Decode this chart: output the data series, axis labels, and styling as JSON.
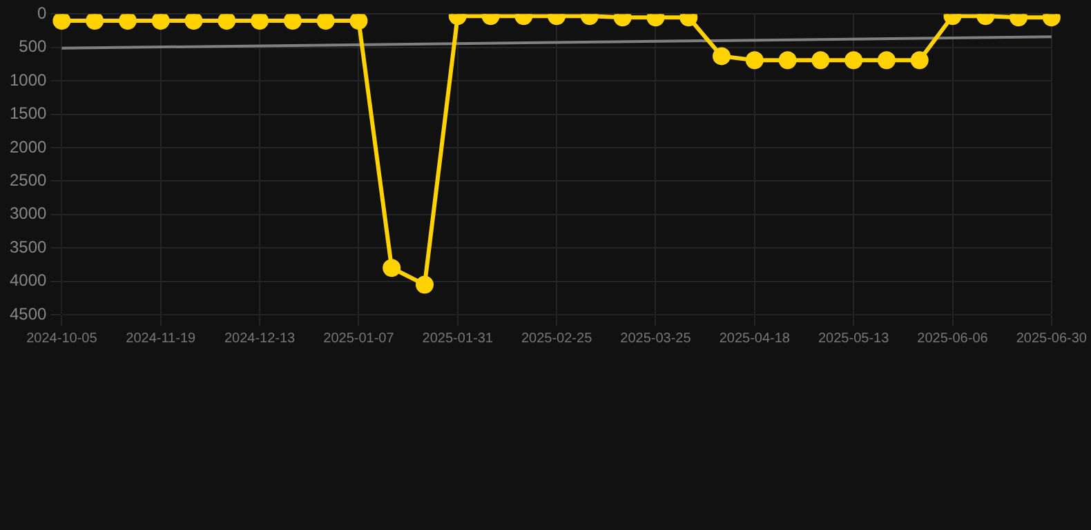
{
  "chart_data": {
    "type": "line",
    "categories": [
      "2024-10-05",
      null,
      null,
      "2024-11-19",
      null,
      null,
      "2024-12-13",
      null,
      null,
      "2025-01-07",
      null,
      null,
      "2025-01-31",
      null,
      null,
      "2025-02-25",
      null,
      null,
      "2025-03-25",
      null,
      null,
      "2025-04-18",
      null,
      null,
      "2025-05-13",
      null,
      null,
      "2025-06-06",
      null,
      null,
      "2025-06-30"
    ],
    "series": [
      {
        "color": "#ffd200",
        "values": [
          100,
          100,
          100,
          100,
          100,
          100,
          100,
          100,
          100,
          100,
          3800,
          4050,
          30,
          30,
          30,
          30,
          30,
          50,
          50,
          50,
          630,
          690,
          690,
          690,
          690,
          690,
          690,
          30,
          30,
          50,
          50
        ],
        "marker": "circle"
      },
      {
        "type": "line",
        "color": "#808080",
        "marker": "none",
        "values": [
          510,
          null,
          null,
          null,
          null,
          null,
          null,
          null,
          null,
          null,
          null,
          null,
          null,
          null,
          null,
          null,
          null,
          null,
          null,
          null,
          null,
          null,
          null,
          null,
          null,
          null,
          null,
          null,
          null,
          null,
          340
        ]
      }
    ],
    "ylim": [
      4500,
      0
    ],
    "yticks": [
      0,
      500,
      1000,
      1500,
      2000,
      2500,
      3000,
      3500,
      4000,
      4500
    ],
    "grid": true,
    "legend": false
  }
}
